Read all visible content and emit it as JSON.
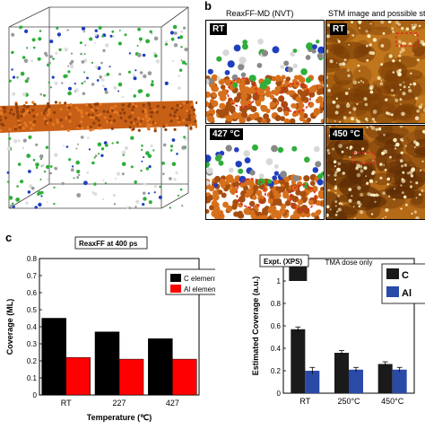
{
  "panel_b": {
    "letter": "b",
    "left_caption": "ReaxFF-MD (NVT)",
    "right_caption": "STM image and possible st",
    "tiles": [
      {
        "label": "RT"
      },
      {
        "label": "RT"
      },
      {
        "label": "427 °C"
      },
      {
        "label": "450 °C"
      }
    ]
  },
  "panel_c": {
    "letter": "c"
  },
  "chart_data": [
    {
      "type": "bar",
      "title": "ReaxFF at 400 ps",
      "xlabel": "Temperature (℃)",
      "ylabel": "Coverage (ML)",
      "categories": [
        "RT",
        "227",
        "427"
      ],
      "ylim": [
        0,
        0.8
      ],
      "yticks": [
        "0",
        "0.1",
        "0.2",
        "0.3",
        "0.4",
        "0.5",
        "0.6",
        "0.7",
        "0.8"
      ],
      "grid": false,
      "legend_position": "top-right",
      "series": [
        {
          "name": "C element",
          "color": "#000000",
          "values": [
            0.45,
            0.37,
            0.33
          ]
        },
        {
          "name": "Al element",
          "color": "#ff0000",
          "values": [
            0.22,
            0.21,
            0.21
          ]
        }
      ]
    },
    {
      "type": "bar",
      "title": "Expt. (XPS)",
      "subtitle": "TMA dose only",
      "xlabel": "",
      "ylabel": "Estimated Coverage (a.u.)",
      "categories": [
        "RT",
        "250°C",
        "450°C"
      ],
      "ylim": [
        0,
        1.2
      ],
      "yticks": [
        "0",
        "0.2",
        "0.4",
        "0.6",
        "0.8",
        "1",
        "1.2"
      ],
      "grid": false,
      "legend_position": "top-right",
      "series": [
        {
          "name": "C",
          "color": "#1a1a1a",
          "values": [
            0.57,
            0.36,
            0.26
          ],
          "errors": [
            0.02,
            0.02,
            0.02
          ]
        },
        {
          "name": "Al",
          "color": "#2a4aa8",
          "values": [
            0.2,
            0.21,
            0.21
          ],
          "errors": [
            0.03,
            0.02,
            0.02
          ]
        }
      ],
      "reference_bar": {
        "category": "RT",
        "series": "C",
        "value": 1.0
      }
    }
  ]
}
